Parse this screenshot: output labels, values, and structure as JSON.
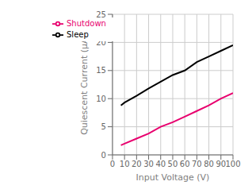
{
  "chart_data": {
    "type": "line",
    "xlabel": "Input Voltage (V)",
    "ylabel": "Quiescent Current (μA)",
    "x": [
      7,
      10,
      20,
      30,
      40,
      50,
      60,
      70,
      80,
      90,
      100
    ],
    "series": [
      {
        "name": "Sleep",
        "color": "#000000",
        "values": [
          8.8,
          9.3,
          10.5,
          11.8,
          13.0,
          14.2,
          15.0,
          16.5,
          17.5,
          18.5,
          19.5
        ]
      },
      {
        "name": "Shutdown",
        "color": "#e8006e",
        "values": [
          1.7,
          2.0,
          2.9,
          3.8,
          5.0,
          5.8,
          6.8,
          7.8,
          8.8,
          10.0,
          11.0
        ]
      }
    ],
    "xlim": [
      0,
      100
    ],
    "ylim": [
      0,
      25
    ],
    "xticks": [
      0,
      10,
      20,
      30,
      40,
      50,
      60,
      70,
      80,
      90,
      100
    ],
    "yticks": [
      0,
      5,
      10,
      15,
      20,
      25
    ],
    "grid": true,
    "legend": "upper left"
  }
}
